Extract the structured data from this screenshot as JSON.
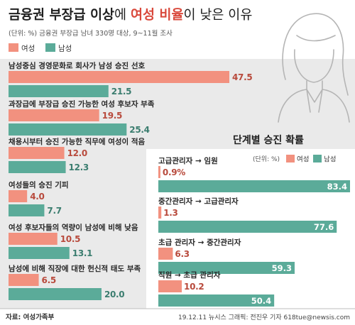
{
  "header": {
    "title_parts": [
      "금융권 부장급 이상",
      "에 ",
      "여성 비율",
      "이 낮은 이유"
    ],
    "subtitle": "(단위: %) 금융권 부장급 남녀 330명 대상, 9~11월 조사"
  },
  "colors": {
    "female": "#f2917f",
    "male": "#5bab99",
    "female_label": "#b84a3c",
    "male_label": "#ffffff",
    "title_accent": "#d9483b",
    "bg_panel": "#eaeaea"
  },
  "legend": {
    "female": "여성",
    "male": "남성"
  },
  "chart_data": [
    {
      "type": "bar",
      "orientation": "horizontal",
      "categories": [
        "남성중심 경영문화로 회사가 남성 승진 선호",
        "과장급에 부장급 승진 가능한 여성 후보자 부족",
        "채용시부터 승진 가능한 직무에 여성이 적음",
        "여성들의 승진 기피",
        "여성 후보자들의 역량이 남성에 비해 낮음",
        "남성에 비해 직장에 대한 헌신적 태도 부족"
      ],
      "series": [
        {
          "name": "여성",
          "values": [
            47.5,
            19.5,
            12.0,
            4.0,
            10.5,
            6.5
          ]
        },
        {
          "name": "남성",
          "values": [
            21.5,
            25.4,
            12.3,
            7.7,
            13.1,
            20.0
          ]
        }
      ],
      "labels": {
        "female": [
          "47.5",
          "19.5",
          "12.0",
          "4.0",
          "10.5",
          "6.5"
        ],
        "male": [
          "21.5",
          "25.4",
          "12.3",
          "7.7",
          "13.1",
          "20.0"
        ]
      },
      "unit": "%",
      "xlim": [
        0,
        50
      ]
    },
    {
      "type": "bar",
      "orientation": "horizontal",
      "title": "단계별 승진 확률",
      "unit_note": "(단위: %)",
      "categories": [
        "고급관리자 → 임원",
        "중간관리자 → 고급관리자",
        "초급 관리자 → 중간관리자",
        "직원 → 초급 관리자"
      ],
      "series": [
        {
          "name": "여성",
          "values": [
            0.9,
            1.3,
            6.3,
            10.2
          ]
        },
        {
          "name": "남성",
          "values": [
            83.4,
            77.6,
            59.3,
            50.4
          ]
        }
      ],
      "labels": {
        "female": [
          "0.9%",
          "1.3",
          "6.3",
          "10.2"
        ],
        "male": [
          "83.4",
          "77.6",
          "59.3",
          "50.4"
        ]
      },
      "unit": "%",
      "xlim": [
        0,
        85
      ]
    }
  ],
  "footer": {
    "source": "자료: 여성가족부",
    "credit": "19.12.11  뉴시스 그래픽: 전진우 기자 618tue@newsis.com"
  }
}
